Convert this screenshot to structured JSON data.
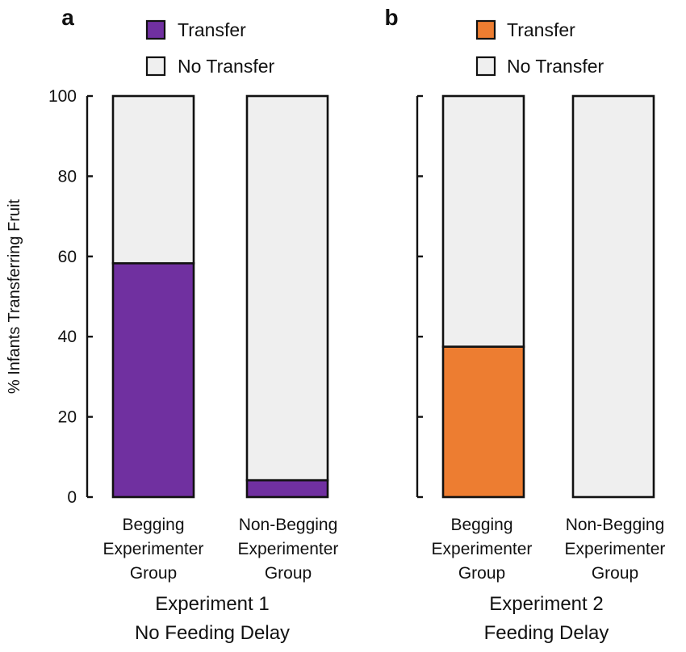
{
  "chart_data": [
    {
      "type": "bar",
      "stacked": true,
      "panel_label": "a",
      "title_lines": [
        "Experiment 1",
        "No Feeding Delay"
      ],
      "ylabel": "% Infants Transferring Fruit",
      "ylim": [
        0,
        100
      ],
      "yticks": [
        0,
        20,
        40,
        60,
        80,
        100
      ],
      "ytick_labels_shown": true,
      "categories": [
        [
          "Begging",
          "Experimenter",
          "Group"
        ],
        [
          "Non-Begging",
          "Experimenter",
          "Group"
        ]
      ],
      "series": [
        {
          "name": "Transfer",
          "color": "#7030a0",
          "values": [
            58.3,
            4.2
          ]
        },
        {
          "name": "No Transfer",
          "color": "#efefef",
          "values": [
            41.7,
            95.8
          ]
        }
      ],
      "legend_position": "top-center"
    },
    {
      "type": "bar",
      "stacked": true,
      "panel_label": "b",
      "title_lines": [
        "Experiment 2",
        "Feeding Delay"
      ],
      "ylim": [
        0,
        100
      ],
      "yticks": [
        0,
        20,
        40,
        60,
        80,
        100
      ],
      "ytick_labels_shown": false,
      "categories": [
        [
          "Begging",
          "Experimenter",
          "Group"
        ],
        [
          "Non-Begging",
          "Experimenter",
          "Group"
        ]
      ],
      "series": [
        {
          "name": "Transfer",
          "color": "#ed7d31",
          "values": [
            37.5,
            0
          ]
        },
        {
          "name": "No Transfer",
          "color": "#efefef",
          "values": [
            62.5,
            100
          ]
        }
      ],
      "legend_position": "top-center"
    }
  ]
}
